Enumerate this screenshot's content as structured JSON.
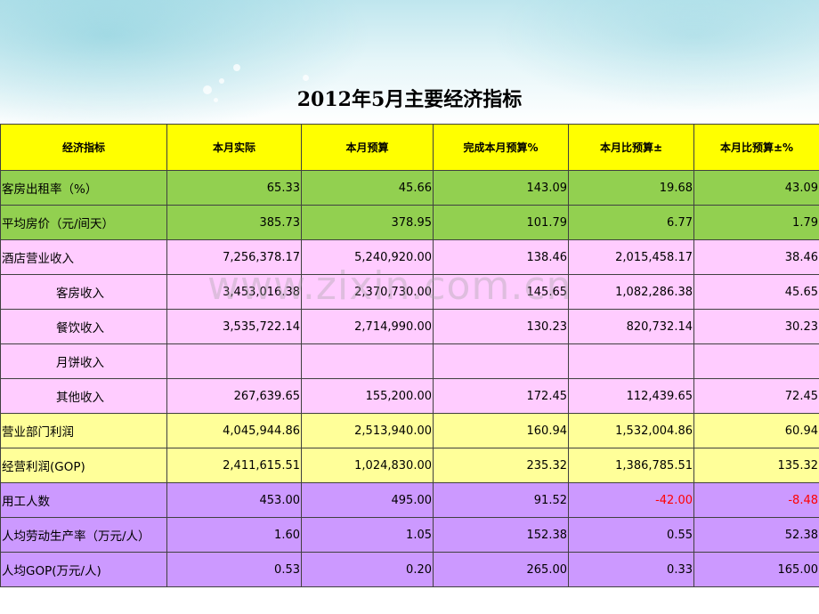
{
  "title": "2012年5月主要经济指标",
  "watermark": "www.zixin.com.cn",
  "columns": [
    "经济指标",
    "本月实际",
    "本月预算",
    "完成本月预算%",
    "本月比预算±",
    "本月比预算±%"
  ],
  "rows": [
    {
      "label": "客房出租率（%）",
      "indent": false,
      "band": "g",
      "cells": [
        "65.33",
        "45.66",
        "143.09",
        "19.68",
        "43.09"
      ]
    },
    {
      "label": "平均房价（元/间天）",
      "indent": false,
      "band": "g",
      "cells": [
        "385.73",
        "378.95",
        "101.79",
        "6.77",
        "1.79"
      ]
    },
    {
      "label": "酒店营业收入",
      "indent": false,
      "band": "p",
      "cells": [
        "7,256,378.17",
        "5,240,920.00",
        "138.46",
        "2,015,458.17",
        "38.46"
      ]
    },
    {
      "label": "客房收入",
      "indent": true,
      "band": "p",
      "cells": [
        "3,453,016.38",
        "2,370,730.00",
        "145.65",
        "1,082,286.38",
        "45.65"
      ]
    },
    {
      "label": "餐饮收入",
      "indent": true,
      "band": "p",
      "cells": [
        "3,535,722.14",
        "2,714,990.00",
        "130.23",
        "820,732.14",
        "30.23"
      ]
    },
    {
      "label": "月饼收入",
      "indent": true,
      "band": "p",
      "cells": [
        "",
        "",
        "",
        "",
        ""
      ]
    },
    {
      "label": "其他收入",
      "indent": true,
      "band": "p",
      "cells": [
        "267,639.65",
        "155,200.00",
        "172.45",
        "112,439.65",
        "72.45"
      ]
    },
    {
      "label": "营业部门利润",
      "indent": false,
      "band": "y",
      "cells": [
        "4,045,944.86",
        "2,513,940.00",
        "160.94",
        "1,532,004.86",
        "60.94"
      ]
    },
    {
      "label": "经营利润(GOP)",
      "indent": false,
      "band": "y",
      "cells": [
        "2,411,615.51",
        "1,024,830.00",
        "235.32",
        "1,386,785.51",
        "135.32"
      ]
    },
    {
      "label": "用工人数",
      "indent": false,
      "band": "v",
      "cells": [
        "453.00",
        "495.00",
        "91.52",
        "-42.00",
        "-8.48"
      ]
    },
    {
      "label": "人均劳动生产率（万元/人）",
      "indent": false,
      "band": "v",
      "cells": [
        "1.60",
        "1.05",
        "152.38",
        "0.55",
        "52.38"
      ]
    },
    {
      "label": "人均GOP(万元/人)",
      "indent": false,
      "band": "v",
      "cells": [
        "0.53",
        "0.20",
        "265.00",
        "0.33",
        "165.00"
      ]
    }
  ],
  "colors": {
    "header": "#ffff00",
    "green_band": "#92d050",
    "pink_band": "#ffccff",
    "yellow_band": "#ffff99",
    "violet_band": "#cc99ff",
    "negative": "#ff0000"
  }
}
